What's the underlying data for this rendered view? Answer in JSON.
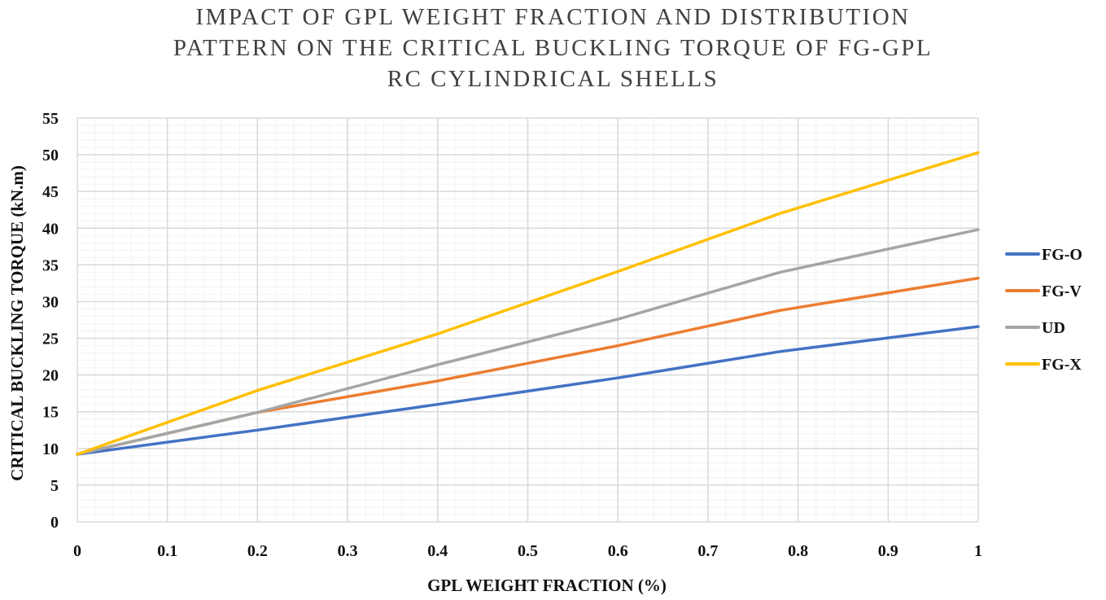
{
  "chart_data": {
    "type": "line",
    "title": [
      "IMPACT OF GPL WEIGHT FRACTION AND DISTRIBUTION",
      "PATTERN ON THE CRITICAL BUCKLING TORQUE OF FG-GPL",
      "RC CYLINDRICAL SHELLS"
    ],
    "xlabel": "GPL WEIGHT FRACTION (%)",
    "ylabel": "CRITICAL BUCKLING TORQUE (kN.m)",
    "xlim": [
      0,
      1
    ],
    "ylim": [
      0,
      55
    ],
    "x_ticks": [
      0,
      0.1,
      0.2,
      0.3,
      0.4,
      0.5,
      0.6,
      0.7,
      0.8,
      0.9,
      1
    ],
    "x_tick_labels": [
      "0",
      "0.1",
      "0.2",
      "0.3",
      "0.4",
      "0.5",
      "0.6",
      "0.7",
      "0.8",
      "0.9",
      "1"
    ],
    "y_ticks": [
      0,
      5,
      10,
      15,
      20,
      25,
      30,
      35,
      40,
      45,
      50,
      55
    ],
    "y_tick_labels": [
      "0",
      "5",
      "10",
      "15",
      "20",
      "25",
      "30",
      "35",
      "40",
      "45",
      "50",
      "55"
    ],
    "grid": true,
    "legend_position": "right",
    "x": [
      0,
      0.2,
      0.4,
      0.6,
      0.78,
      1
    ],
    "series": [
      {
        "name": "FG-O",
        "color": "#4472C4",
        "values": [
          9.2,
          12.5,
          16.0,
          19.6,
          23.2,
          26.6
        ]
      },
      {
        "name": "FG-V",
        "color": "#ED7D31",
        "values": [
          9.2,
          14.9,
          19.2,
          24.0,
          28.8,
          33.2
        ]
      },
      {
        "name": "UD",
        "color": "#A5A5A5",
        "values": [
          9.2,
          14.9,
          21.4,
          27.6,
          34.0,
          39.8
        ]
      },
      {
        "name": "FG-X",
        "color": "#FFC000",
        "values": [
          9.2,
          17.9,
          25.6,
          34.1,
          42.0,
          50.3
        ]
      }
    ]
  }
}
